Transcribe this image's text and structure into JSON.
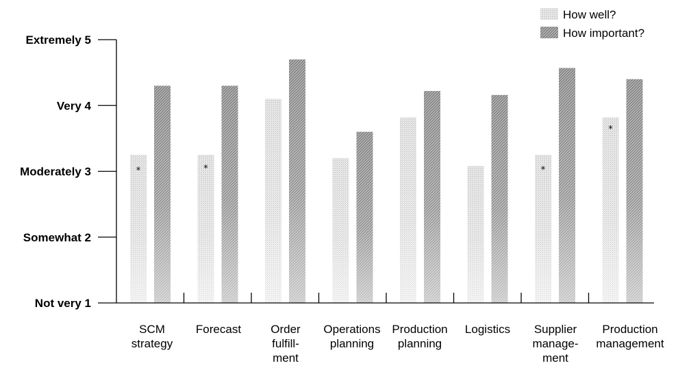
{
  "chart_data": {
    "type": "bar",
    "categories": [
      [
        "SCM",
        "strategy"
      ],
      [
        "Forecast"
      ],
      [
        "Order",
        "fulfill-",
        "ment"
      ],
      [
        "Operations",
        "planning"
      ],
      [
        "Production",
        "planning"
      ],
      [
        "Logistics"
      ],
      [
        "Supplier",
        "manage-",
        "ment"
      ],
      [
        "Production",
        "management"
      ]
    ],
    "series": [
      {
        "name": "How well?",
        "values": [
          3.25,
          3.25,
          4.1,
          3.2,
          3.82,
          3.08,
          3.25,
          3.82
        ],
        "color": "#c9c9c9"
      },
      {
        "name": "How important?",
        "values": [
          4.3,
          4.3,
          4.7,
          3.6,
          4.22,
          4.16,
          4.57,
          4.4
        ],
        "color": "#8a8a8a"
      }
    ],
    "annotations": [
      {
        "category_index": 0,
        "value": 3.03,
        "text": "*"
      },
      {
        "category_index": 1,
        "value": 3.06,
        "text": "*"
      },
      {
        "category_index": 6,
        "value": 3.04,
        "text": "*"
      },
      {
        "category_index": 7,
        "value": 3.66,
        "text": "*"
      }
    ],
    "ylim": [
      1,
      5
    ],
    "yticks": [
      {
        "value": 5,
        "label": "Extremely  5"
      },
      {
        "value": 4,
        "label": "Very  4"
      },
      {
        "value": 3,
        "label": "Moderately  3"
      },
      {
        "value": 2,
        "label": "Somewhat  2"
      },
      {
        "value": 1,
        "label": "Not very  1"
      }
    ],
    "legend_position": "top-right",
    "grid": false
  }
}
